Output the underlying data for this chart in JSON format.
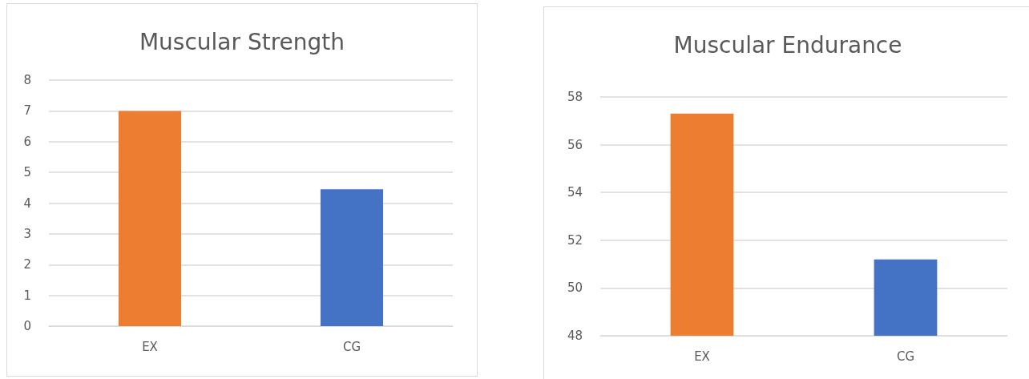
{
  "chart_data": [
    {
      "type": "bar",
      "title": "Muscular Strength",
      "categories": [
        "EX",
        "CG"
      ],
      "colors": [
        "#ed7d31",
        "#4472c4"
      ],
      "values": [
        7.0,
        4.45
      ],
      "ylim": [
        0,
        8
      ],
      "yticks": [
        0,
        1,
        2,
        3,
        4,
        5,
        6,
        7,
        8
      ],
      "grid": "y"
    },
    {
      "type": "bar",
      "title": "Muscular Endurance",
      "categories": [
        "EX",
        "CG"
      ],
      "colors": [
        "#ed7d31",
        "#4472c4"
      ],
      "values": [
        57.3,
        51.2
      ],
      "ylim": [
        48,
        58
      ],
      "yticks": [
        48,
        50,
        52,
        54,
        56,
        58
      ],
      "grid": "y"
    }
  ]
}
